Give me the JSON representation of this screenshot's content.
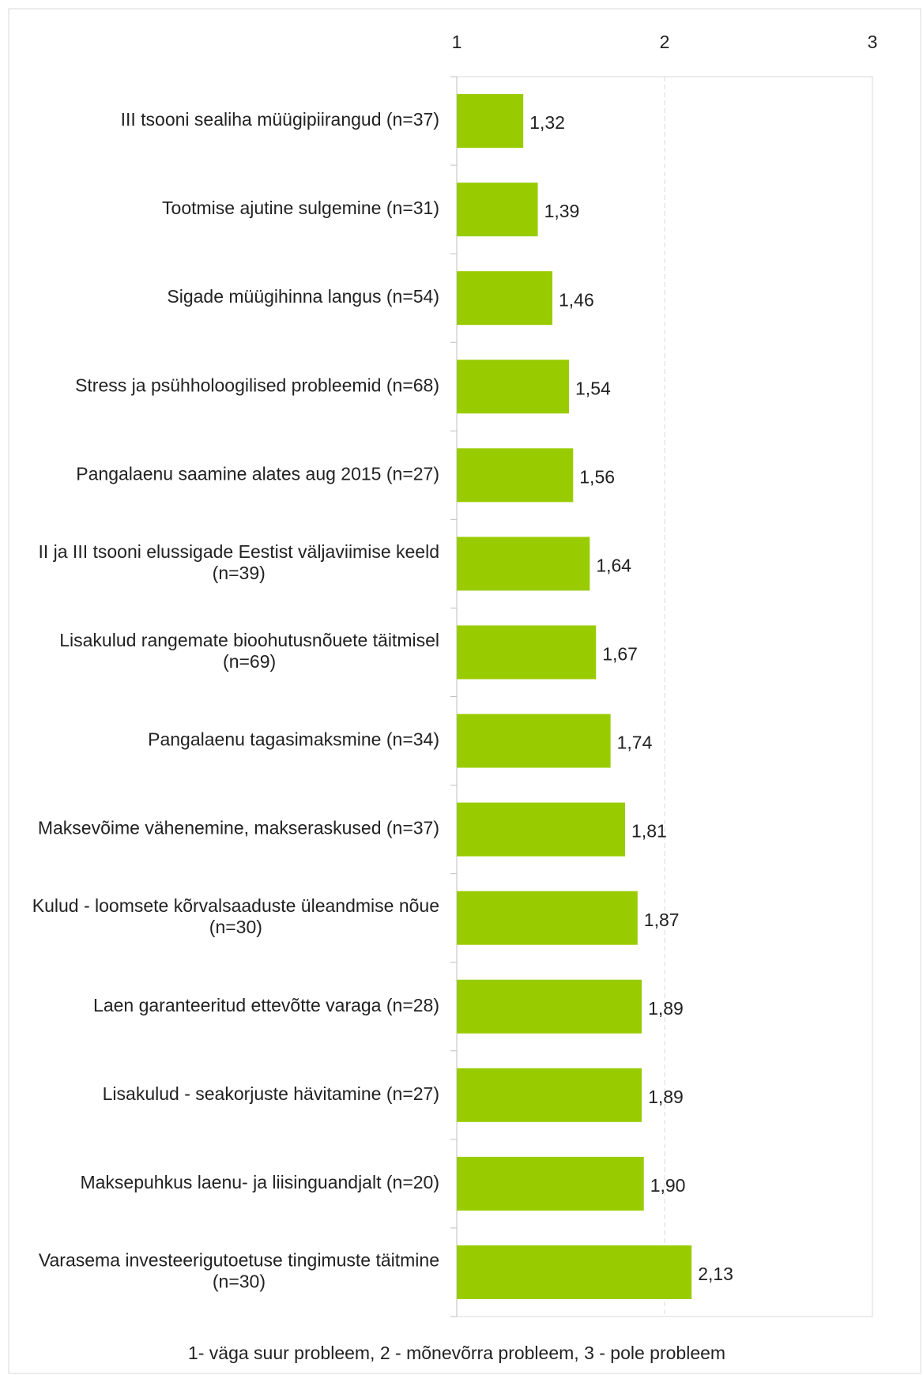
{
  "chart_data": {
    "type": "bar",
    "orientation": "horizontal",
    "categories": [
      "III tsooni sealiha müügipiirangud (n=37)",
      "Tootmise ajutine sulgemine (n=31)",
      "Sigade müügihinna langus (n=54)",
      "Stress ja psühholoogilised probleemid (n=68)",
      "Pangalaenu saamine alates aug 2015 (n=27)",
      "II ja III tsooni elussigade Eestist väljaviimise keeld (n=39)",
      "Lisakulud rangemate bioohutusnõuete täitmisel (n=69)",
      "Pangalaenu tagasimaksmine (n=34)",
      "Maksevõime vähenemine, makseraskused (n=37)",
      "Kulud - loomsete kõrvalsaaduste üleandmise nõue (n=30)",
      "Laen garanteeritud ettevõtte varaga (n=28)",
      "Lisakulud - seakorjuste hävitamine (n=27)",
      "Maksepuhkus laenu- ja liisinguandjalt (n=20)",
      "Varasema investeerigutoetuse tingimuste täitmine (n=30)"
    ],
    "values": [
      1.32,
      1.39,
      1.46,
      1.54,
      1.56,
      1.64,
      1.67,
      1.74,
      1.81,
      1.87,
      1.89,
      1.89,
      1.9,
      2.13
    ],
    "value_labels": [
      "1,32",
      "1,39",
      "1,46",
      "1,54",
      "1,56",
      "1,64",
      "1,67",
      "1,74",
      "1,81",
      "1,87",
      "1,89",
      "1,89",
      "1,90",
      "2,13"
    ],
    "color": "#99cc00",
    "xlim": [
      1,
      3
    ],
    "xticks": [
      1,
      2,
      3
    ],
    "grid": true,
    "note": "1- väga suur probleem, 2 - mõnevõrra probleem, 3 - pole probleem"
  }
}
